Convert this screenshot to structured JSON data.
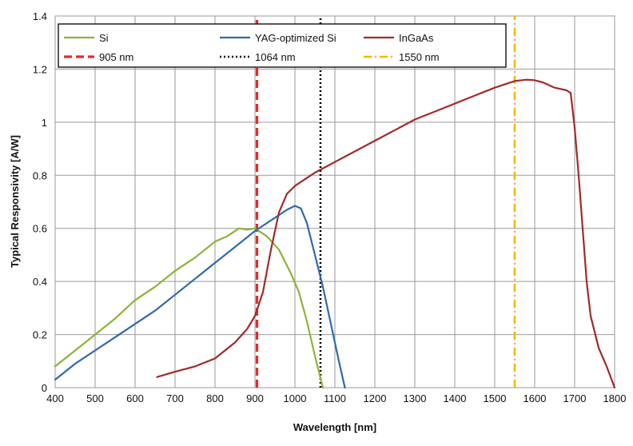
{
  "chart_data": {
    "type": "line",
    "xlabel": "Wavelength [nm]",
    "ylabel": "Typical Responsivity [A/W]",
    "xlim": [
      400,
      1800
    ],
    "ylim": [
      0,
      1.4
    ],
    "xticks": [
      "400",
      "500",
      "600",
      "700",
      "800",
      "900",
      "1000",
      "1100",
      "1200",
      "1300",
      "1400",
      "1500",
      "1600",
      "1700",
      "1800"
    ],
    "yticks": [
      "0",
      "0.2",
      "0.4",
      "0.6",
      "0.8",
      "1",
      "1.2",
      "1.4"
    ],
    "grid": true,
    "legend_position": "top",
    "series": [
      {
        "name": "Si",
        "color": "#8db33a",
        "dash": "solid",
        "points": [
          [
            400,
            0.08
          ],
          [
            450,
            0.14
          ],
          [
            500,
            0.2
          ],
          [
            550,
            0.26
          ],
          [
            600,
            0.33
          ],
          [
            650,
            0.38
          ],
          [
            700,
            0.44
          ],
          [
            750,
            0.49
          ],
          [
            800,
            0.55
          ],
          [
            830,
            0.57
          ],
          [
            860,
            0.6
          ],
          [
            880,
            0.595
          ],
          [
            900,
            0.6
          ],
          [
            930,
            0.57
          ],
          [
            960,
            0.52
          ],
          [
            990,
            0.43
          ],
          [
            1010,
            0.36
          ],
          [
            1030,
            0.25
          ],
          [
            1050,
            0.12
          ],
          [
            1065,
            0.03
          ],
          [
            1070,
            0
          ]
        ]
      },
      {
        "name": "YAG-optimized Si",
        "color": "#2f6aa8",
        "dash": "solid",
        "points": [
          [
            400,
            0.03
          ],
          [
            450,
            0.09
          ],
          [
            500,
            0.14
          ],
          [
            550,
            0.19
          ],
          [
            600,
            0.24
          ],
          [
            650,
            0.29
          ],
          [
            700,
            0.35
          ],
          [
            750,
            0.41
          ],
          [
            800,
            0.47
          ],
          [
            850,
            0.53
          ],
          [
            900,
            0.59
          ],
          [
            950,
            0.64
          ],
          [
            980,
            0.67
          ],
          [
            1000,
            0.685
          ],
          [
            1015,
            0.675
          ],
          [
            1030,
            0.62
          ],
          [
            1050,
            0.5
          ],
          [
            1070,
            0.38
          ],
          [
            1090,
            0.24
          ],
          [
            1110,
            0.1
          ],
          [
            1125,
            0
          ]
        ]
      },
      {
        "name": "InGaAs",
        "color": "#a12a2b",
        "dash": "solid",
        "points": [
          [
            655,
            0.04
          ],
          [
            700,
            0.06
          ],
          [
            750,
            0.08
          ],
          [
            800,
            0.11
          ],
          [
            850,
            0.17
          ],
          [
            880,
            0.22
          ],
          [
            900,
            0.27
          ],
          [
            920,
            0.36
          ],
          [
            940,
            0.52
          ],
          [
            960,
            0.66
          ],
          [
            980,
            0.73
          ],
          [
            1000,
            0.76
          ],
          [
            1050,
            0.81
          ],
          [
            1100,
            0.85
          ],
          [
            1150,
            0.89
          ],
          [
            1200,
            0.93
          ],
          [
            1250,
            0.97
          ],
          [
            1300,
            1.01
          ],
          [
            1350,
            1.04
          ],
          [
            1400,
            1.07
          ],
          [
            1450,
            1.1
          ],
          [
            1500,
            1.13
          ],
          [
            1550,
            1.155
          ],
          [
            1580,
            1.16
          ],
          [
            1600,
            1.158
          ],
          [
            1620,
            1.15
          ],
          [
            1650,
            1.13
          ],
          [
            1680,
            1.12
          ],
          [
            1690,
            1.11
          ],
          [
            1700,
            0.98
          ],
          [
            1710,
            0.8
          ],
          [
            1720,
            0.6
          ],
          [
            1730,
            0.4
          ],
          [
            1740,
            0.27
          ],
          [
            1760,
            0.15
          ],
          [
            1780,
            0.08
          ],
          [
            1800,
            0
          ]
        ]
      },
      {
        "name": "905 nm",
        "color": "#e02d2d",
        "dash": "dashed",
        "points": [
          [
            905,
            0
          ],
          [
            905,
            1.4
          ]
        ]
      },
      {
        "name": "1064 nm",
        "color": "#000000",
        "dash": "dotted",
        "points": [
          [
            1064,
            0
          ],
          [
            1064,
            1.4
          ]
        ]
      },
      {
        "name": "1550 nm",
        "color": "#f2b900",
        "dash": "dashdot",
        "points": [
          [
            1550,
            0
          ],
          [
            1550,
            1.4
          ]
        ]
      }
    ]
  }
}
